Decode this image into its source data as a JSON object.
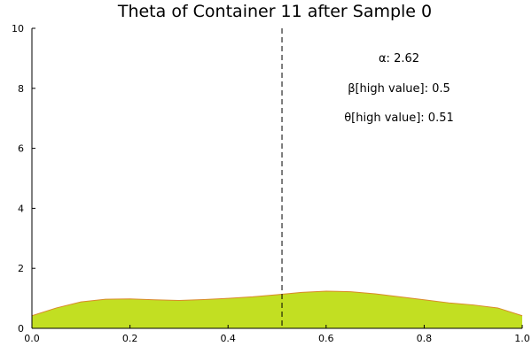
{
  "chart_data": {
    "type": "area",
    "title": "Theta of Container 11 after Sample 0",
    "xlabel": "",
    "ylabel": "",
    "xlim": [
      0.0,
      1.0
    ],
    "ylim": [
      0,
      10
    ],
    "x_ticks": [
      "0.0",
      "0.2",
      "0.4",
      "0.6",
      "0.8",
      "1.0"
    ],
    "y_ticks": [
      "0",
      "2",
      "4",
      "6",
      "8",
      "10"
    ],
    "grid": false,
    "fill_color": "#c2df22",
    "edge_color": "#d98a2a",
    "vline": {
      "x": 0.51,
      "style": "dashed",
      "color": "#000000"
    },
    "annotations": [
      "α: 2.62",
      "β[high value]: 0.5",
      "θ[high value]: 0.51"
    ],
    "series": [
      {
        "x": [
          0.0,
          0.05,
          0.1,
          0.15,
          0.2,
          0.25,
          0.3,
          0.35,
          0.4,
          0.45,
          0.5,
          0.55,
          0.6,
          0.65,
          0.7,
          0.75,
          0.8,
          0.85,
          0.9,
          0.95,
          1.0
        ],
        "y": [
          0.42,
          0.68,
          0.88,
          0.97,
          0.98,
          0.95,
          0.93,
          0.96,
          1.0,
          1.05,
          1.12,
          1.2,
          1.24,
          1.22,
          1.15,
          1.05,
          0.95,
          0.85,
          0.78,
          0.68,
          0.42
        ]
      }
    ]
  }
}
